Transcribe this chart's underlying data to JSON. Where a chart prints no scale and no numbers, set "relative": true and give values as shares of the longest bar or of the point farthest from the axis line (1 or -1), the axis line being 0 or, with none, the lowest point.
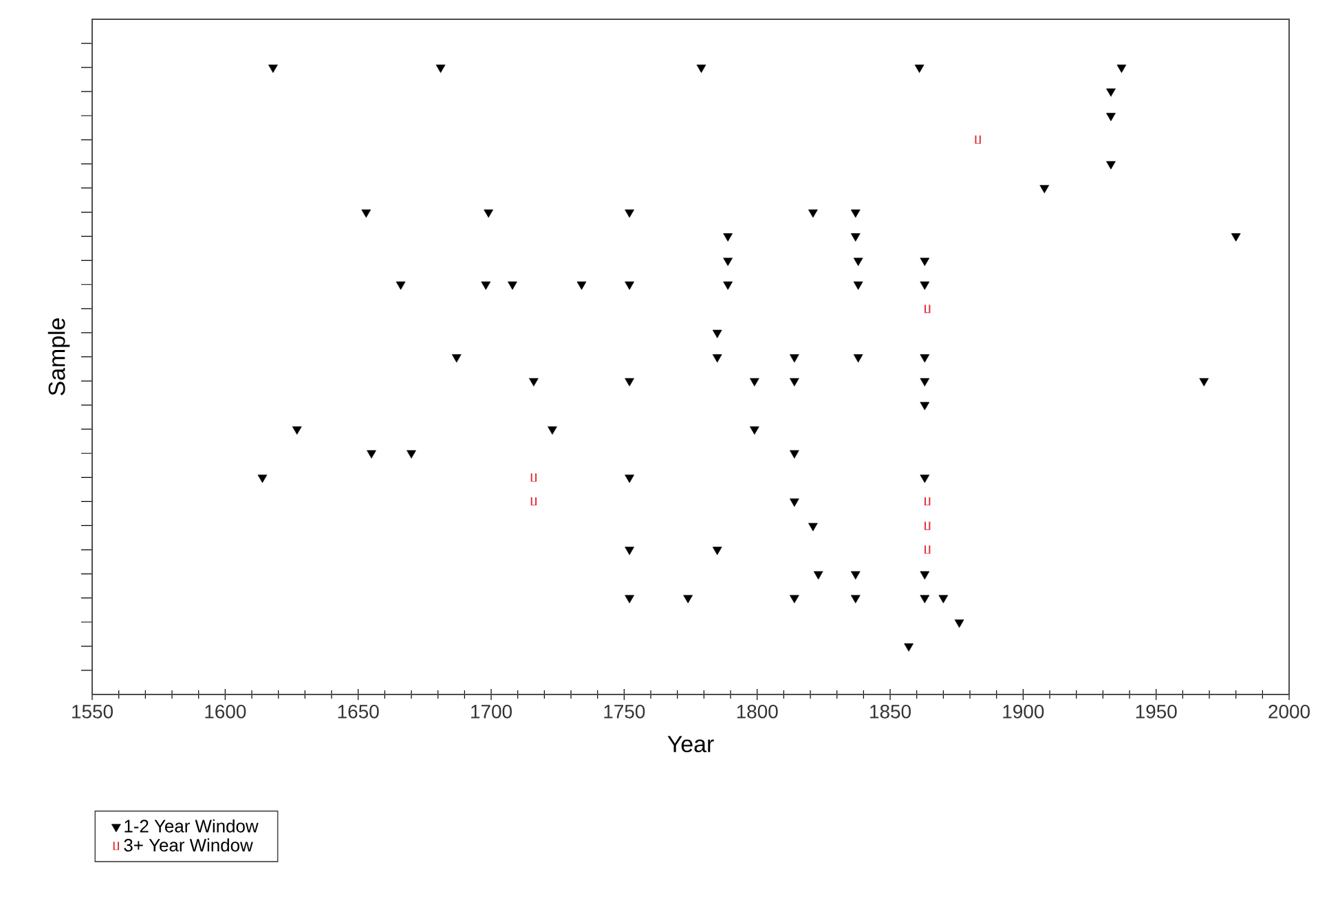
{
  "chart_data": {
    "type": "scatter",
    "xlabel": "Year",
    "ylabel": "Sample",
    "relative": true,
    "xlim": [
      1550,
      2000
    ],
    "xticks": [
      1550,
      1600,
      1650,
      1700,
      1750,
      1800,
      1850,
      1900,
      1950,
      2000
    ],
    "legend": "bottom left",
    "grid": false,
    "series": [
      {
        "name": "1-2 Year Window",
        "color": "#000000",
        "marker": "triangle",
        "x": [
          1618,
          1681,
          1779,
          1861,
          1937,
          1933,
          1933,
          1933,
          1908,
          1653,
          1699,
          1752,
          1821,
          1837,
          1789,
          1837,
          1980,
          1789,
          1838,
          1863,
          1666,
          1698,
          1708,
          1734,
          1752,
          1789,
          1838,
          1863,
          1785,
          1687,
          1785,
          1814,
          1838,
          1863,
          1716,
          1752,
          1799,
          1814,
          1863,
          1968,
          1863,
          1627,
          1723,
          1799,
          1655,
          1670,
          1814,
          1614,
          1752,
          1863,
          1814,
          1821,
          1752,
          1785,
          1823,
          1837,
          1863,
          1752,
          1774,
          1814,
          1837,
          1863,
          1870,
          1876,
          1857
        ],
        "values": [
          1,
          1,
          1,
          1,
          1,
          0.962,
          0.923,
          0.846,
          0.808,
          0.769,
          0.769,
          0.769,
          0.769,
          0.769,
          0.731,
          0.731,
          0.731,
          0.692,
          0.692,
          0.692,
          0.654,
          0.654,
          0.654,
          0.654,
          0.654,
          0.654,
          0.654,
          0.654,
          0.577,
          0.538,
          0.538,
          0.538,
          0.538,
          0.538,
          0.5,
          0.5,
          0.5,
          0.5,
          0.5,
          0.5,
          0.462,
          0.423,
          0.423,
          0.423,
          0.385,
          0.385,
          0.385,
          0.346,
          0.346,
          0.346,
          0.308,
          0.269,
          0.231,
          0.231,
          0.192,
          0.192,
          0.192,
          0.154,
          0.154,
          0.154,
          0.154,
          0.154,
          0.154,
          0.115,
          0.077
        ]
      },
      {
        "name": "3+ Year Window",
        "color": "#e0303a",
        "x": [
          1883,
          1864,
          1716,
          1716,
          1864,
          1864,
          1864
        ],
        "values": [
          0.885,
          0.615,
          0.346,
          0.308,
          0.308,
          0.269,
          0.231
        ]
      }
    ]
  }
}
